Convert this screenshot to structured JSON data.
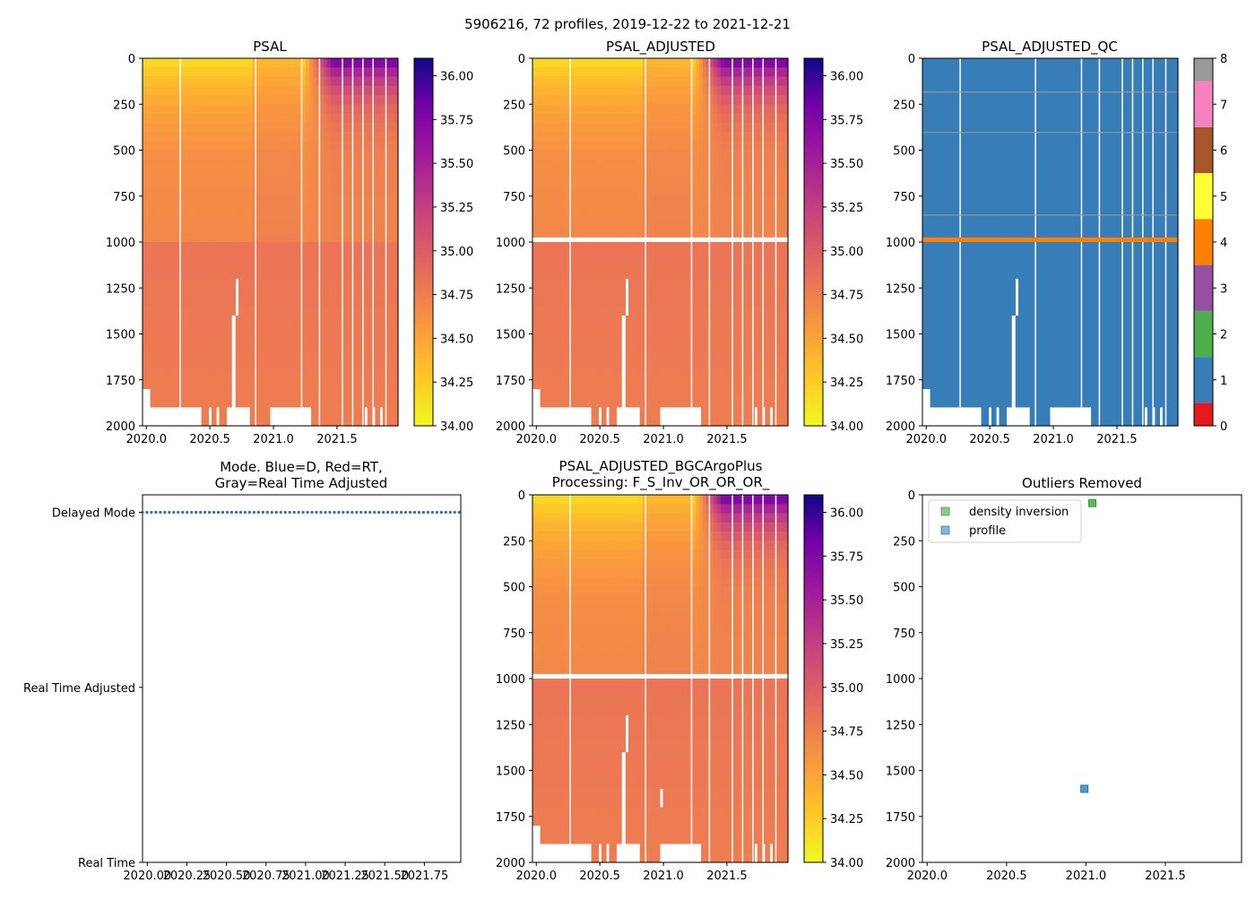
{
  "suptitle": "5906216, 72 profiles, 2019-12-22 to 2021-12-21",
  "chart_data": [
    {
      "id": "psal",
      "type": "heatmap",
      "title": "PSAL",
      "x_ticks": [
        "2020.0",
        "2020.5",
        "2021.0",
        "2021.5"
      ],
      "x_tick_values": [
        2020.0,
        2020.5,
        2021.0,
        2021.5
      ],
      "xlim": [
        2019.97,
        2021.98
      ],
      "y_ticks": [
        "0",
        "250",
        "500",
        "750",
        "1000",
        "1250",
        "1500",
        "1750",
        "2000"
      ],
      "y_tick_values": [
        0,
        250,
        500,
        750,
        1000,
        1250,
        1500,
        1750,
        2000
      ],
      "ylim": [
        2000,
        0
      ],
      "colorbar": {
        "cmap": "plasma_r",
        "ticks": [
          "34.00",
          "34.25",
          "34.50",
          "34.75",
          "35.00",
          "35.25",
          "35.50",
          "35.75",
          "36.00"
        ],
        "range": [
          34.0,
          36.1
        ]
      },
      "value_range_note": "fresh (~34.1) near surface early, saline (~35.9) upper layer 2021.3-2021.9, ~34.75 at depth"
    },
    {
      "id": "psal_adjusted",
      "type": "heatmap",
      "title": "PSAL_ADJUSTED",
      "x_ticks": [
        "2020.0",
        "2020.5",
        "2021.0",
        "2021.5"
      ],
      "x_tick_values": [
        2020.0,
        2020.5,
        2021.0,
        2021.5
      ],
      "xlim": [
        2019.97,
        2021.98
      ],
      "y_ticks": [
        "0",
        "250",
        "500",
        "750",
        "1000",
        "1250",
        "1500",
        "1750",
        "2000"
      ],
      "y_tick_values": [
        0,
        250,
        500,
        750,
        1000,
        1250,
        1500,
        1750,
        2000
      ],
      "ylim": [
        2000,
        0
      ],
      "colorbar": {
        "cmap": "plasma_r",
        "ticks": [
          "34.00",
          "34.25",
          "34.50",
          "34.75",
          "35.00",
          "35.25",
          "35.50",
          "35.75",
          "36.00"
        ],
        "range": [
          34.0,
          36.1
        ]
      }
    },
    {
      "id": "psal_adjusted_qc",
      "type": "heatmap",
      "title": "PSAL_ADJUSTED_QC",
      "x_ticks": [
        "2020.0",
        "2020.5",
        "2021.0",
        "2021.5"
      ],
      "x_tick_values": [
        2020.0,
        2020.5,
        2021.0,
        2021.5
      ],
      "xlim": [
        2019.97,
        2021.98
      ],
      "y_ticks": [
        "0",
        "250",
        "500",
        "750",
        "1000",
        "1250",
        "1500",
        "1750",
        "2000"
      ],
      "y_tick_values": [
        0,
        250,
        500,
        750,
        1000,
        1250,
        1500,
        1750,
        2000
      ],
      "ylim": [
        2000,
        0
      ],
      "colorbar": {
        "ticks": [
          "0",
          "1",
          "2",
          "3",
          "4",
          "5",
          "6",
          "7",
          "8"
        ],
        "colors": [
          "#e41a1c",
          "#377eb8",
          "#4daf4a",
          "#984ea3",
          "#ff7f00",
          "#ffff33",
          "#a65628",
          "#f781bf",
          "#999999"
        ]
      },
      "dominant_flag": 1,
      "flag4_depth": 985
    },
    {
      "id": "mode",
      "type": "scatter",
      "title_line1": "Mode. Blue=D, Red=RT,",
      "title_line2": "Gray=Real Time Adjusted",
      "x_ticks": [
        "2020.00",
        "2020.25",
        "2020.50",
        "2020.75",
        "2021.00",
        "2021.25",
        "2021.50",
        "2021.75"
      ],
      "x_tick_values": [
        2020.0,
        2020.25,
        2020.5,
        2020.75,
        2021.0,
        2021.25,
        2021.5,
        2021.75
      ],
      "xlim": [
        2019.97,
        2021.98
      ],
      "y_ticks": [
        "Delayed Mode",
        "Real Time Adjusted",
        "Real Time"
      ],
      "y_tick_values": [
        0,
        1,
        2
      ],
      "ylim": [
        2,
        -0.1
      ],
      "series": [
        {
          "name": "Delayed Mode",
          "color": "#1f77b4",
          "y": 0,
          "x_start": 2019.97,
          "x_end": 2021.97,
          "count": 72
        }
      ]
    },
    {
      "id": "psal_adjusted_bgc",
      "type": "heatmap",
      "title_line1": "PSAL_ADJUSTED_BGCArgoPlus",
      "title_line2": "Processing: F_S_Inv_OR_OR_OR_",
      "x_ticks": [
        "2020.0",
        "2020.5",
        "2021.0",
        "2021.5"
      ],
      "x_tick_values": [
        2020.0,
        2020.5,
        2021.0,
        2021.5
      ],
      "xlim": [
        2019.97,
        2021.98
      ],
      "y_ticks": [
        "0",
        "250",
        "500",
        "750",
        "1000",
        "1250",
        "1500",
        "1750",
        "2000"
      ],
      "y_tick_values": [
        0,
        250,
        500,
        750,
        1000,
        1250,
        1500,
        1750,
        2000
      ],
      "ylim": [
        2000,
        0
      ],
      "colorbar": {
        "cmap": "plasma_r",
        "ticks": [
          "34.00",
          "34.25",
          "34.50",
          "34.75",
          "35.00",
          "35.25",
          "35.50",
          "35.75",
          "36.00"
        ],
        "range": [
          34.0,
          36.1
        ]
      }
    },
    {
      "id": "outliers",
      "type": "scatter",
      "title": "Outliers Removed",
      "x_ticks": [
        "2020.0",
        "2020.5",
        "2021.0",
        "2021.5"
      ],
      "x_tick_values": [
        2020.0,
        2020.5,
        2021.0,
        2021.5
      ],
      "xlim": [
        2019.97,
        2021.98
      ],
      "y_ticks": [
        "0",
        "250",
        "500",
        "750",
        "1000",
        "1250",
        "1500",
        "1750",
        "2000"
      ],
      "y_tick_values": [
        0,
        250,
        500,
        750,
        1000,
        1250,
        1500,
        1750,
        2000
      ],
      "ylim": [
        2000,
        0
      ],
      "legend": {
        "location": "upper-left"
      },
      "series": [
        {
          "name": "density inversion",
          "color": "#2ca02c",
          "points": [
            {
              "x": 2021.04,
              "y": 45
            }
          ]
        },
        {
          "name": "profile",
          "color": "#1f77b4",
          "points": [
            {
              "x": 2020.99,
              "y": 1600
            }
          ]
        }
      ]
    }
  ]
}
